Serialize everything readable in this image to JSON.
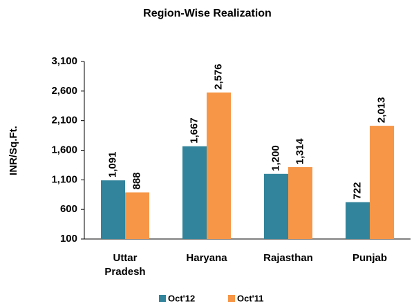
{
  "chart_data": {
    "type": "bar",
    "title": "Region-Wise Realization",
    "y_label": "INR/Sq.Ft.",
    "categories": [
      "Uttar Pradesh",
      "Haryana",
      "Rajasthan",
      "Punjab"
    ],
    "series": [
      {
        "name": "Oct'12",
        "color": "#31849b",
        "values": [
          1091,
          1667,
          1200,
          722
        ],
        "value_labels": [
          "1,091",
          "1,667",
          "1,200",
          "722"
        ]
      },
      {
        "name": "Oct'11",
        "color": "#f79646",
        "values": [
          888,
          2576,
          1314,
          2013
        ],
        "value_labels": [
          "888",
          "2,576",
          "1,314",
          "2,013"
        ]
      }
    ],
    "ylim": [
      100,
      3100
    ],
    "yticks": [
      100,
      600,
      {
        "value": 1100,
        "label": "1,100"
      },
      {
        "value": 1600,
        "label": "1,600"
      },
      {
        "value": 2100,
        "label": "2,100"
      },
      {
        "value": 2600,
        "label": "2,600"
      },
      {
        "value": 3100,
        "label": "3,100"
      }
    ],
    "legend": "bottom"
  }
}
